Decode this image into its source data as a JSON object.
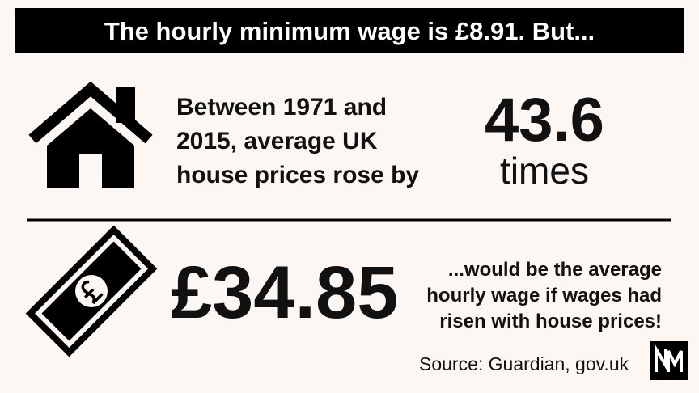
{
  "header": {
    "title": "The hourly minimum wage is £8.91. But..."
  },
  "house_section": {
    "lines": [
      "Between 1971 and",
      "2015, average UK",
      "house prices rose by"
    ],
    "stat": "43.6",
    "unit": "times"
  },
  "wage_section": {
    "stat": "£34.85",
    "lines": [
      "...would be the average",
      "hourly wage if wages had",
      "risen with house prices!"
    ]
  },
  "footer": {
    "source": "Source: Guardian, gov.uk"
  }
}
